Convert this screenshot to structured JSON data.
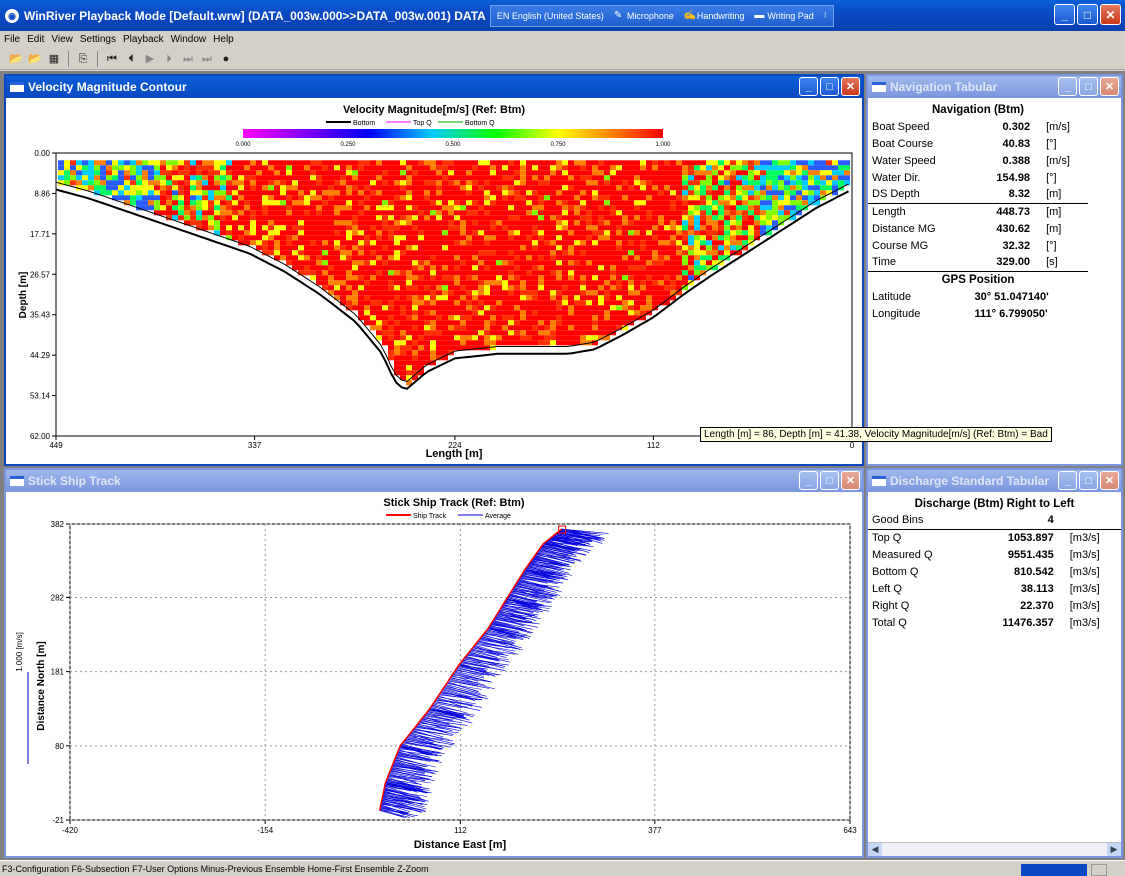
{
  "app": {
    "title": "WinRiver Playback Mode [Default.wrw] (DATA_003w.000>>DATA_003w.001) DATA",
    "langbar": [
      "EN English (United States)",
      "Microphone",
      "Handwriting",
      "Writing Pad"
    ],
    "menu": [
      "File",
      "Edit",
      "View",
      "Settings",
      "Playback",
      "Window",
      "Help"
    ],
    "status": "F3-Configuration  F6-Subsection  F7-User Options  Minus-Previous Ensemble  Home-First Ensemble  Z-Zoom"
  },
  "contour": {
    "window_title": "Velocity Magnitude Contour",
    "chart_title": "Velocity Magnitude[m/s] (Ref: Btm)",
    "legend": [
      "Bottom",
      "Top Q",
      "Bottom Q"
    ],
    "colorbar_ticks": [
      "0.000",
      "0.250",
      "0.500",
      "0.750",
      "1.000"
    ],
    "y_ticks": [
      "0.00",
      "8.86",
      "17.71",
      "26.57",
      "35.43",
      "44.29",
      "53.14",
      "62.00"
    ],
    "x_ticks": [
      "449",
      "337",
      "224",
      "112",
      "0"
    ],
    "ylabel": "Depth [m]",
    "xlabel": "Length [m]",
    "tooltip": "Length [m] = 86, Depth [m] = 41.38, Velocity Magnitude[m/s] (Ref: Btm) = Bad"
  },
  "nav": {
    "window_title": "Navigation Tabular",
    "header": "Navigation (Btm)",
    "rows": [
      {
        "label": "Boat Speed",
        "value": "0.302",
        "unit": "[m/s]"
      },
      {
        "label": "Boat Course",
        "value": "40.83",
        "unit": "[°]"
      },
      {
        "label": "Water Speed",
        "value": "0.388",
        "unit": "[m/s]"
      },
      {
        "label": "Water Dir.",
        "value": "154.98",
        "unit": "[°]"
      },
      {
        "label": "DS Depth",
        "value": "8.32",
        "unit": "[m]"
      },
      {
        "label": "Length",
        "value": "448.73",
        "unit": "[m]"
      },
      {
        "label": "Distance MG",
        "value": "430.62",
        "unit": "[m]"
      },
      {
        "label": "Course MG",
        "value": "32.32",
        "unit": "[°]"
      },
      {
        "label": "Time",
        "value": "329.00",
        "unit": "[s]"
      }
    ],
    "gps_header": "GPS Position",
    "gps": [
      {
        "label": "Latitude",
        "value": "30° 51.047140'"
      },
      {
        "label": "Longitude",
        "value": "111° 6.799050'"
      }
    ]
  },
  "track": {
    "window_title": "Stick Ship Track",
    "chart_title": "Stick Ship Track (Ref: Btm)",
    "legend": [
      "Ship Track",
      "Average"
    ],
    "y_ticks": [
      "382",
      "282",
      "181",
      "80",
      "-21"
    ],
    "x_ticks": [
      "-420",
      "-154",
      "112",
      "377",
      "643"
    ],
    "ylabel": "Distance North [m]",
    "xlabel": "Distance East [m]",
    "scale_label": "1.000 [m/s]"
  },
  "discharge": {
    "window_title": "Discharge Standard Tabular",
    "header": "Discharge (Btm) Right to Left",
    "good_bins_label": "Good Bins",
    "good_bins": "4",
    "rows": [
      {
        "label": "Top Q",
        "value": "1053.897",
        "unit": "[m3/s]"
      },
      {
        "label": "Measured Q",
        "value": "9551.435",
        "unit": "[m3/s]"
      },
      {
        "label": "Bottom Q",
        "value": "810.542",
        "unit": "[m3/s]"
      },
      {
        "label": "Left Q",
        "value": "38.113",
        "unit": "[m3/s]"
      },
      {
        "label": "Right Q",
        "value": "22.370",
        "unit": "[m3/s]"
      },
      {
        "label": "Total Q",
        "value": "11476.357",
        "unit": "[m3/s]"
      }
    ]
  },
  "chart_data": [
    {
      "type": "heatmap",
      "title": "Velocity Magnitude[m/s] (Ref: Btm)",
      "xlabel": "Length [m]",
      "ylabel": "Depth [m]",
      "xlim": [
        449,
        0
      ],
      "ylim": [
        0,
        62
      ],
      "color_range": [
        0,
        1
      ],
      "bottom_profile": {
        "x": [
          449,
          430,
          400,
          370,
          340,
          320,
          300,
          280,
          265,
          258,
          252,
          240,
          224,
          200,
          180,
          160,
          145,
          130,
          112,
          95,
          80,
          60,
          40,
          20,
          0
        ],
        "y": [
          8,
          10,
          14,
          18,
          22,
          26,
          31,
          37,
          44,
          50,
          52,
          48,
          45,
          44,
          44,
          44,
          43,
          40,
          36,
          31,
          27,
          22,
          17,
          12,
          8
        ]
      }
    },
    {
      "type": "line",
      "title": "Stick Ship Track (Ref: Btm)",
      "xlabel": "Distance East [m]",
      "ylabel": "Distance North [m]",
      "xlim": [
        -420,
        643
      ],
      "ylim": [
        -21,
        382
      ],
      "series": [
        {
          "name": "Ship Track",
          "x": [
            2,
            10,
            30,
            70,
            110,
            150,
            175,
            200,
            225,
            250
          ],
          "y": [
            -8,
            30,
            80,
            130,
            190,
            240,
            280,
            320,
            355,
            375
          ]
        }
      ]
    }
  ]
}
